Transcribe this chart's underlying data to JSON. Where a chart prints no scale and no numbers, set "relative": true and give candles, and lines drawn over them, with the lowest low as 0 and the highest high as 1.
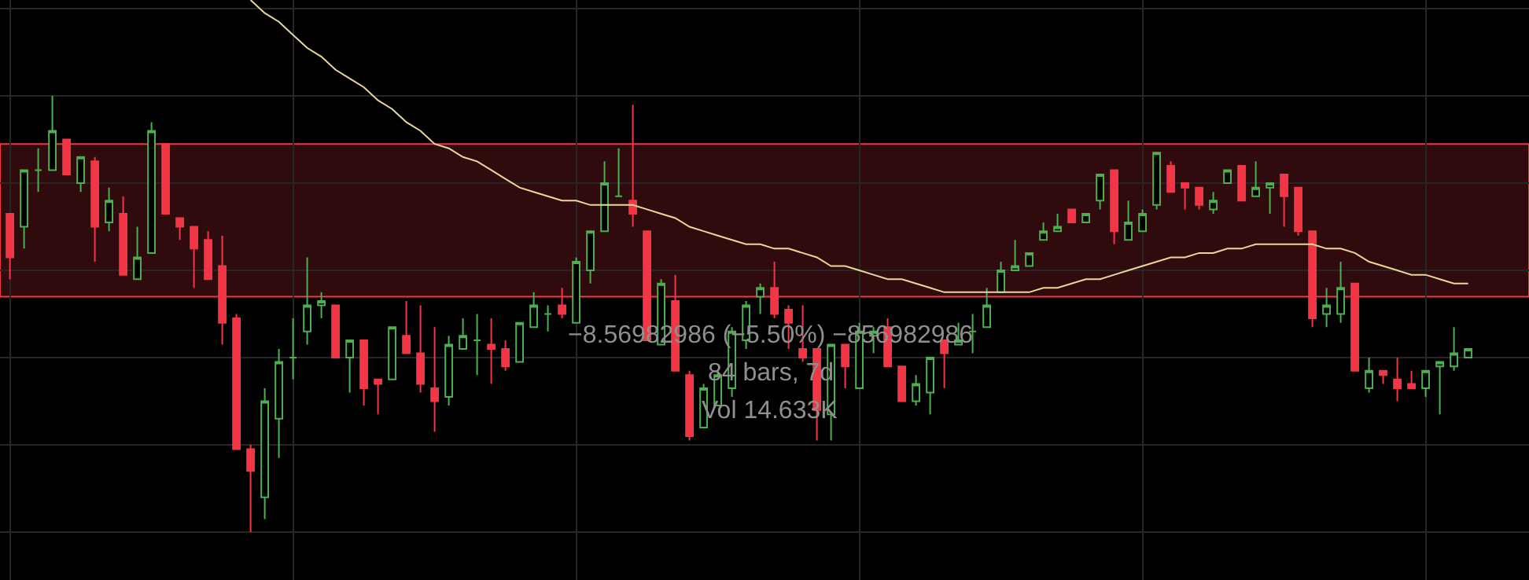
{
  "chart_data": {
    "type": "candlestick",
    "relative": true,
    "grid": true,
    "categories": [
      null,
      null,
      null,
      null,
      null,
      null,
      null,
      null,
      null,
      null,
      null,
      null,
      null,
      null,
      null,
      null,
      null,
      null,
      null,
      null,
      null,
      null,
      null,
      null,
      null,
      null,
      null,
      null,
      null,
      null,
      null,
      null,
      null,
      null,
      null,
      null,
      null,
      null,
      null,
      null,
      null,
      null,
      null,
      null,
      null,
      null,
      null,
      null,
      null,
      null,
      null,
      null,
      null,
      null,
      null,
      null,
      null,
      null,
      null,
      null,
      null,
      null,
      null,
      null,
      null,
      null,
      null,
      null,
      null,
      null,
      null,
      null,
      null,
      null,
      null,
      null,
      null,
      null,
      null,
      null,
      null,
      null,
      null,
      null,
      null,
      null,
      null,
      null,
      null,
      null,
      null,
      null,
      null,
      null,
      null,
      null,
      null,
      null,
      null,
      null,
      null,
      null,
      null,
      null
    ],
    "ohlc": [
      [
        0.73,
        0.73,
        0.58,
        0.63
      ],
      [
        0.7,
        0.83,
        0.65,
        0.83
      ],
      [
        0.83,
        0.88,
        0.78,
        0.83
      ],
      [
        0.83,
        1.0,
        0.83,
        0.92
      ],
      [
        0.9,
        0.9,
        0.82,
        0.82
      ],
      [
        0.8,
        0.86,
        0.78,
        0.86
      ],
      [
        0.85,
        0.86,
        0.62,
        0.7
      ],
      [
        0.71,
        0.79,
        0.69,
        0.76
      ],
      [
        0.73,
        0.77,
        0.59,
        0.59
      ],
      [
        0.58,
        0.7,
        0.58,
        0.63
      ],
      [
        0.64,
        0.94,
        0.64,
        0.92
      ],
      [
        0.89,
        0.89,
        0.73,
        0.73
      ],
      [
        0.72,
        0.72,
        0.67,
        0.7
      ],
      [
        0.7,
        0.7,
        0.56,
        0.65
      ],
      [
        0.67,
        0.69,
        0.58,
        0.58
      ],
      [
        0.61,
        0.68,
        0.43,
        0.48
      ],
      [
        0.49,
        0.5,
        0.19,
        0.19
      ],
      [
        0.19,
        0.2,
        0.0,
        0.14
      ],
      [
        0.08,
        0.33,
        0.03,
        0.3
      ],
      [
        0.26,
        0.42,
        0.17,
        0.39
      ],
      [
        0.4,
        0.49,
        0.35,
        0.4
      ],
      [
        0.46,
        0.63,
        0.43,
        0.52
      ],
      [
        0.52,
        0.55,
        0.49,
        0.53
      ],
      [
        0.52,
        0.52,
        0.4,
        0.4
      ],
      [
        0.4,
        0.44,
        0.32,
        0.44
      ],
      [
        0.44,
        0.44,
        0.29,
        0.33
      ],
      [
        0.35,
        0.35,
        0.27,
        0.34
      ],
      [
        0.35,
        0.47,
        0.35,
        0.47
      ],
      [
        0.45,
        0.53,
        0.41,
        0.41
      ],
      [
        0.41,
        0.52,
        0.32,
        0.34
      ],
      [
        0.33,
        0.47,
        0.23,
        0.3
      ],
      [
        0.31,
        0.45,
        0.29,
        0.43
      ],
      [
        0.42,
        0.49,
        0.42,
        0.45
      ],
      [
        0.44,
        0.5,
        0.36,
        0.44
      ],
      [
        0.43,
        0.49,
        0.34,
        0.42
      ],
      [
        0.42,
        0.44,
        0.37,
        0.38
      ],
      [
        0.39,
        0.48,
        0.39,
        0.48
      ],
      [
        0.47,
        0.55,
        0.47,
        0.52
      ],
      [
        0.5,
        0.52,
        0.46,
        0.5
      ],
      [
        0.52,
        0.56,
        0.49,
        0.5
      ],
      [
        0.48,
        0.63,
        0.48,
        0.62
      ],
      [
        0.6,
        0.69,
        0.57,
        0.69
      ],
      [
        0.69,
        0.85,
        0.69,
        0.8
      ],
      [
        0.77,
        0.88,
        0.77,
        0.77
      ],
      [
        0.76,
        0.98,
        0.7,
        0.73
      ],
      [
        0.69,
        0.69,
        0.44,
        0.44
      ],
      [
        0.43,
        0.58,
        0.43,
        0.57
      ],
      [
        0.53,
        0.59,
        0.37,
        0.37
      ],
      [
        0.36,
        0.37,
        0.21,
        0.22
      ],
      [
        0.24,
        0.34,
        0.24,
        0.33
      ],
      [
        0.29,
        0.37,
        0.29,
        0.36
      ],
      [
        0.33,
        0.47,
        0.31,
        0.46
      ],
      [
        0.44,
        0.53,
        0.42,
        0.52
      ],
      [
        0.54,
        0.57,
        0.5,
        0.56
      ],
      [
        0.56,
        0.62,
        0.49,
        0.5
      ],
      [
        0.51,
        0.52,
        0.42,
        0.48
      ],
      [
        0.42,
        0.52,
        0.39,
        0.4
      ],
      [
        0.42,
        0.42,
        0.21,
        0.28
      ],
      [
        0.27,
        0.43,
        0.21,
        0.43
      ],
      [
        0.43,
        0.43,
        0.33,
        0.38
      ],
      [
        0.33,
        0.48,
        0.33,
        0.46
      ],
      [
        0.45,
        0.47,
        0.41,
        0.46
      ],
      [
        0.47,
        0.49,
        0.38,
        0.38
      ],
      [
        0.38,
        0.38,
        0.3,
        0.3
      ],
      [
        0.3,
        0.36,
        0.29,
        0.34
      ],
      [
        0.32,
        0.4,
        0.27,
        0.4
      ],
      [
        0.44,
        0.44,
        0.33,
        0.41
      ],
      [
        0.43,
        0.48,
        0.43,
        0.44
      ],
      [
        0.46,
        0.5,
        0.41,
        0.46
      ],
      [
        0.47,
        0.56,
        0.47,
        0.52
      ],
      [
        0.55,
        0.62,
        0.55,
        0.6
      ],
      [
        0.6,
        0.67,
        0.6,
        0.61
      ],
      [
        0.61,
        0.64,
        0.61,
        0.64
      ],
      [
        0.67,
        0.71,
        0.67,
        0.69
      ],
      [
        0.69,
        0.73,
        0.69,
        0.7
      ],
      [
        0.74,
        0.74,
        0.71,
        0.71
      ],
      [
        0.71,
        0.73,
        0.71,
        0.73
      ],
      [
        0.76,
        0.82,
        0.74,
        0.82
      ],
      [
        0.83,
        0.83,
        0.66,
        0.69
      ],
      [
        0.67,
        0.76,
        0.67,
        0.71
      ],
      [
        0.69,
        0.74,
        0.69,
        0.73
      ],
      [
        0.75,
        0.87,
        0.74,
        0.87
      ],
      [
        0.84,
        0.85,
        0.78,
        0.78
      ],
      [
        0.8,
        0.8,
        0.74,
        0.79
      ],
      [
        0.79,
        0.79,
        0.74,
        0.75
      ],
      [
        0.74,
        0.78,
        0.73,
        0.76
      ],
      [
        0.8,
        0.83,
        0.8,
        0.83
      ],
      [
        0.84,
        0.84,
        0.76,
        0.76
      ],
      [
        0.77,
        0.85,
        0.77,
        0.79
      ],
      [
        0.79,
        0.8,
        0.73,
        0.8
      ],
      [
        0.82,
        0.82,
        0.7,
        0.77
      ],
      [
        0.79,
        0.79,
        0.68,
        0.69
      ],
      [
        0.69,
        0.69,
        0.47,
        0.49
      ],
      [
        0.5,
        0.56,
        0.47,
        0.52
      ],
      [
        0.5,
        0.62,
        0.48,
        0.56
      ],
      [
        0.57,
        0.57,
        0.37,
        0.37
      ],
      [
        0.33,
        0.4,
        0.32,
        0.37
      ],
      [
        0.37,
        0.37,
        0.34,
        0.36
      ],
      [
        0.35,
        0.4,
        0.3,
        0.33
      ],
      [
        0.34,
        0.37,
        0.33,
        0.33
      ],
      [
        0.33,
        0.37,
        0.31,
        0.37
      ],
      [
        0.38,
        0.39,
        0.27,
        0.39
      ],
      [
        0.38,
        0.47,
        0.37,
        0.41
      ],
      [
        0.4,
        0.42,
        0.4,
        0.42
      ]
    ],
    "colors": [
      "#f23645",
      "#4caf50",
      "#4caf50",
      "#4caf50",
      "#f23645",
      "#4caf50",
      "#f23645",
      "#4caf50",
      "#f23645",
      "#4caf50",
      "#4caf50",
      "#f23645",
      "#f23645",
      "#f23645",
      "#f23645",
      "#f23645",
      "#f23645",
      "#f23645",
      "#4caf50",
      "#4caf50",
      "#4caf50",
      "#4caf50",
      "#4caf50",
      "#f23645",
      "#4caf50",
      "#f23645",
      "#f23645",
      "#4caf50",
      "#f23645",
      "#f23645",
      "#f23645",
      "#4caf50",
      "#4caf50",
      "#4caf50",
      "#f23645",
      "#f23645",
      "#4caf50",
      "#4caf50",
      "#4caf50",
      "#f23645",
      "#4caf50",
      "#4caf50",
      "#4caf50",
      "#4caf50",
      "#f23645",
      "#f23645",
      "#4caf50",
      "#f23645",
      "#f23645",
      "#4caf50",
      "#4caf50",
      "#4caf50",
      "#4caf50",
      "#4caf50",
      "#f23645",
      "#f23645",
      "#f23645",
      "#f23645",
      "#4caf50",
      "#f23645",
      "#4caf50",
      "#4caf50",
      "#f23645",
      "#f23645",
      "#4caf50",
      "#4caf50",
      "#f23645",
      "#4caf50",
      "#4caf50",
      "#4caf50",
      "#4caf50",
      "#4caf50",
      "#4caf50",
      "#4caf50",
      "#4caf50",
      "#f23645",
      "#4caf50",
      "#4caf50",
      "#f23645",
      "#4caf50",
      "#4caf50",
      "#4caf50",
      "#f23645",
      "#f23645",
      "#f23645",
      "#4caf50",
      "#4caf50",
      "#f23645",
      "#4caf50",
      "#4caf50",
      "#f23645",
      "#f23645",
      "#f23645",
      "#4caf50",
      "#4caf50",
      "#f23645",
      "#4caf50",
      "#f23645",
      "#f23645",
      "#f23645",
      "#4caf50",
      "#4caf50",
      "#4caf50",
      "#4caf50"
    ],
    "series": [
      {
        "type": "line",
        "color": "#e8d89a",
        "values": [
          null,
          null,
          null,
          null,
          null,
          null,
          null,
          null,
          null,
          null,
          null,
          null,
          null,
          null,
          null,
          null,
          null,
          1.22,
          1.19,
          1.17,
          1.14,
          1.11,
          1.09,
          1.06,
          1.04,
          1.02,
          0.99,
          0.97,
          0.94,
          0.92,
          0.89,
          0.88,
          0.86,
          0.85,
          0.83,
          0.81,
          0.79,
          0.78,
          0.77,
          0.76,
          0.76,
          0.75,
          0.75,
          0.75,
          0.75,
          0.74,
          0.73,
          0.72,
          0.7,
          0.69,
          0.68,
          0.67,
          0.66,
          0.66,
          0.65,
          0.65,
          0.64,
          0.63,
          0.61,
          0.61,
          0.6,
          0.59,
          0.58,
          0.58,
          0.57,
          0.56,
          0.55,
          0.55,
          0.55,
          0.55,
          0.55,
          0.55,
          0.55,
          0.56,
          0.56,
          0.57,
          0.58,
          0.58,
          0.59,
          0.6,
          0.61,
          0.62,
          0.63,
          0.63,
          0.64,
          0.64,
          0.65,
          0.65,
          0.66,
          0.66,
          0.66,
          0.66,
          0.66,
          0.65,
          0.65,
          0.64,
          0.62,
          0.61,
          0.6,
          0.59,
          0.59,
          0.58,
          0.57,
          0.57
        ]
      }
    ],
    "bands": [
      {
        "axis": "y",
        "from": 0.54,
        "to": 0.89,
        "color": "#f23645"
      }
    ],
    "annotations": [
      "−8.56982986 (−5.50%) −856982986",
      "84 bars, 7d",
      "Vol 14.633K"
    ]
  }
}
